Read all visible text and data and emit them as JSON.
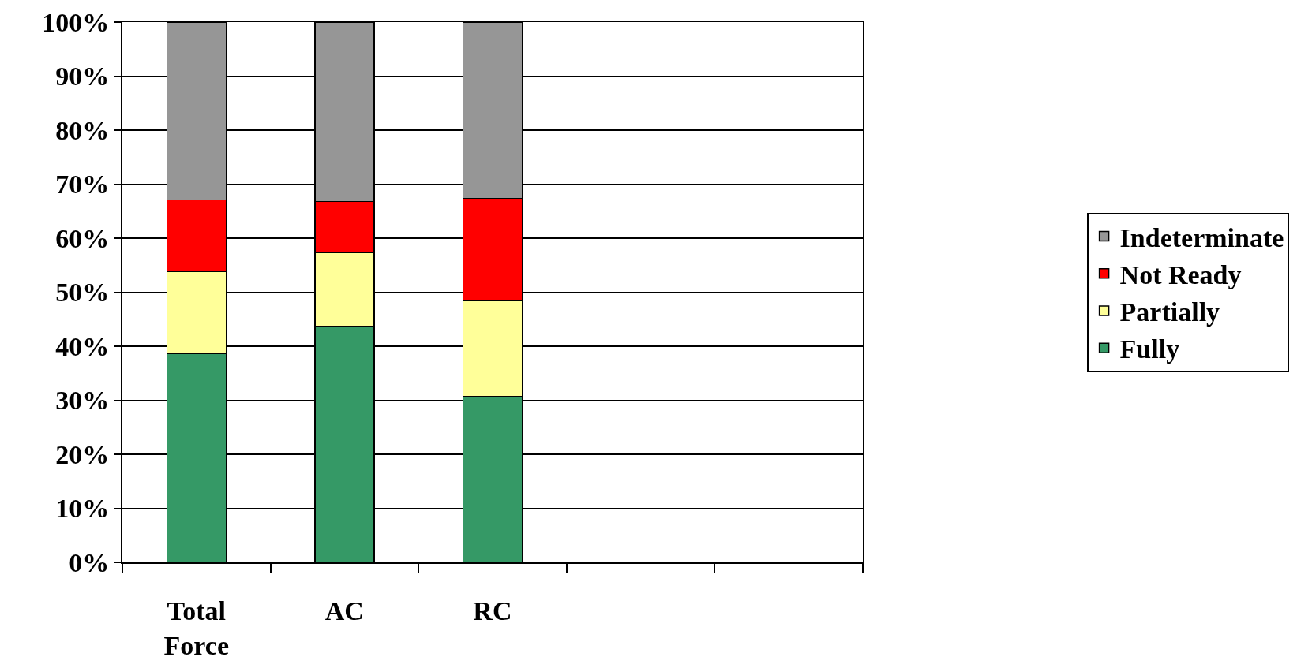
{
  "chart_data": {
    "type": "bar",
    "stacked": true,
    "categories": [
      "Total Force",
      "AC",
      "RC",
      null,
      null
    ],
    "series": [
      {
        "name": "Fully",
        "color": "#359966",
        "values": [
          38.7,
          43.7,
          30.7,
          null,
          null
        ]
      },
      {
        "name": "Partially",
        "color": "#ffff99",
        "values": [
          15.1,
          13.7,
          17.7,
          null,
          null
        ]
      },
      {
        "name": "Not Ready",
        "color": "#ff0000",
        "values": [
          13.3,
          9.4,
          19.0,
          null,
          null
        ]
      },
      {
        "name": "Indeterminate",
        "color": "#969696",
        "values": [
          32.9,
          33.2,
          32.6,
          null,
          null
        ]
      }
    ],
    "ylim": [
      0,
      100
    ],
    "yticks": [
      {
        "value": 0,
        "label": "0%"
      },
      {
        "value": 10,
        "label": "10%"
      },
      {
        "value": 20,
        "label": "20%"
      },
      {
        "value": 30,
        "label": "30%"
      },
      {
        "value": 40,
        "label": "40%"
      },
      {
        "value": 50,
        "label": "50%"
      },
      {
        "value": 60,
        "label": "60%"
      },
      {
        "value": 70,
        "label": "70%"
      },
      {
        "value": 80,
        "label": "80%"
      },
      {
        "value": 90,
        "label": "90%"
      },
      {
        "value": 100,
        "label": "100%"
      }
    ],
    "grid": "y",
    "legend": "right"
  }
}
